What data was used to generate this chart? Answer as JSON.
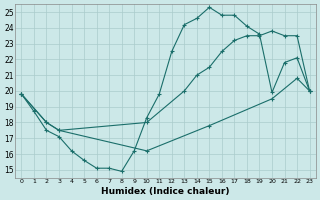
{
  "xlabel": "Humidex (Indice chaleur)",
  "bg_color": "#cce8e8",
  "line_color": "#1a6e6a",
  "grid_color": "#aacccc",
  "xlim": [
    -0.5,
    23.5
  ],
  "ylim": [
    14.5,
    25.5
  ],
  "xticks": [
    0,
    1,
    2,
    3,
    4,
    5,
    6,
    7,
    8,
    9,
    10,
    11,
    12,
    13,
    14,
    15,
    16,
    17,
    18,
    19,
    20,
    21,
    22,
    23
  ],
  "yticks": [
    15,
    16,
    17,
    18,
    19,
    20,
    21,
    22,
    23,
    24,
    25
  ],
  "line1_x": [
    0,
    1,
    2,
    3,
    4,
    5,
    6,
    7,
    8,
    9,
    10,
    11,
    12,
    13,
    14,
    15,
    16,
    17,
    18,
    19,
    20,
    21,
    22,
    23
  ],
  "line1_y": [
    19.8,
    18.7,
    17.5,
    17.1,
    16.2,
    15.6,
    15.1,
    15.1,
    14.9,
    16.2,
    18.3,
    19.8,
    22.5,
    24.2,
    24.6,
    25.3,
    24.8,
    24.8,
    24.1,
    23.6,
    19.9,
    21.8,
    22.1,
    20.0
  ],
  "line2_x": [
    0,
    2,
    3,
    10,
    13,
    14,
    15,
    16,
    17,
    18,
    19,
    20,
    21,
    22,
    23
  ],
  "line2_y": [
    19.8,
    18.0,
    17.5,
    18.0,
    20.0,
    21.0,
    21.5,
    22.5,
    23.2,
    23.5,
    23.5,
    23.8,
    23.5,
    23.5,
    20.0
  ],
  "line3_x": [
    0,
    2,
    3,
    10,
    15,
    20,
    22,
    23
  ],
  "line3_y": [
    19.8,
    18.0,
    17.5,
    16.2,
    17.8,
    19.5,
    20.8,
    20.0
  ]
}
